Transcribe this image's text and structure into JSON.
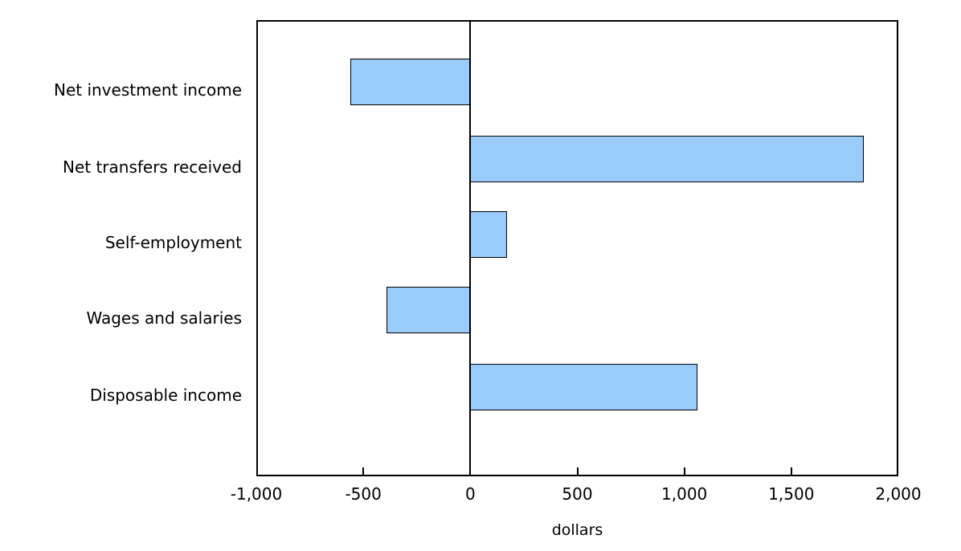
{
  "chart_data": {
    "type": "bar",
    "orientation": "horizontal",
    "categories": [
      "Net investment income",
      "Net transfers received",
      "Self-employment",
      "Wages and salaries",
      "Disposable income"
    ],
    "values": [
      -560,
      1840,
      170,
      -390,
      1060
    ],
    "xlabel": "dollars",
    "xlim": [
      -1000,
      2000
    ],
    "xticks": [
      -1000,
      -500,
      0,
      500,
      1000,
      1500,
      2000
    ],
    "xtick_labels": [
      "-1,000",
      "-500",
      "0",
      "500",
      "1,000",
      "1,500",
      "2,000"
    ],
    "grid": false,
    "zero_line": true,
    "colors": {
      "bar_fill": "#99CBFB",
      "bar_border": "#000000",
      "axis": "#000000",
      "text": "#000000",
      "background": "#FFFFFF"
    }
  }
}
